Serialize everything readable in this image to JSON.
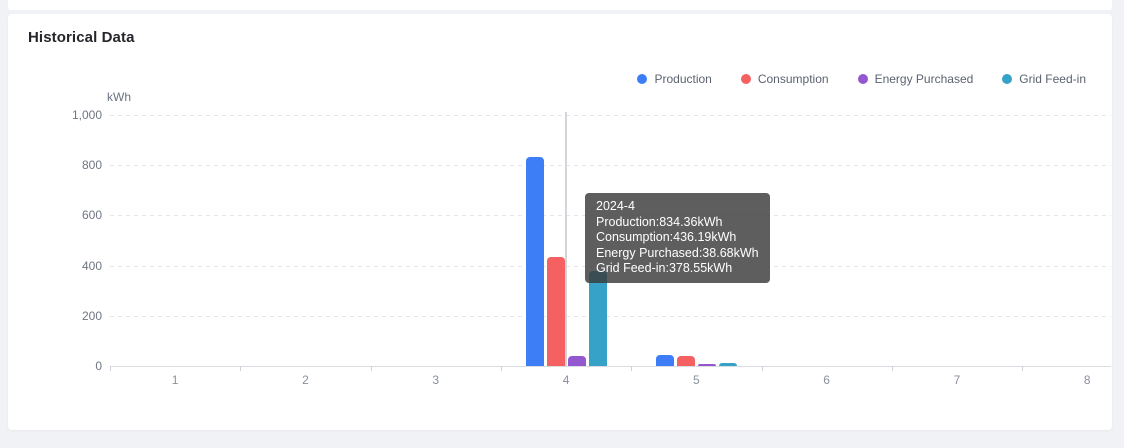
{
  "header": {
    "title": "Historical Data"
  },
  "chart_data": {
    "type": "bar",
    "title": "Historical Data",
    "ylabel": "kWh",
    "xlabel": "",
    "ylim": [
      0,
      1000
    ],
    "yticks": [
      0,
      200,
      400,
      600,
      800,
      1000
    ],
    "ytick_labels": [
      "0",
      "200",
      "400",
      "600",
      "800",
      "1,000"
    ],
    "categories": [
      "1",
      "2",
      "3",
      "4",
      "5",
      "6",
      "7",
      "8"
    ],
    "grid": "horizontal-dashed",
    "legend_position": "top-right",
    "highlighted_category": "4",
    "series": [
      {
        "name": "Production",
        "color": "#3D7EF7",
        "values": [
          0,
          0,
          0,
          834.36,
          44,
          0,
          0,
          0
        ]
      },
      {
        "name": "Consumption",
        "color": "#F56060",
        "values": [
          0,
          0,
          0,
          436.19,
          40,
          0,
          0,
          0
        ]
      },
      {
        "name": "Energy Purchased",
        "color": "#9357CF",
        "values": [
          0,
          0,
          0,
          38.68,
          8,
          0,
          0,
          0
        ]
      },
      {
        "name": "Grid Feed-in",
        "color": "#36A2C7",
        "values": [
          0,
          0,
          0,
          378.55,
          10,
          0,
          0,
          0
        ]
      }
    ]
  },
  "tooltip": {
    "title": "2024-4",
    "lines": [
      "Production:834.36kWh",
      "Consumption:436.19kWh",
      "Energy Purchased:38.68kWh",
      "Grid Feed-in:378.55kWh"
    ]
  }
}
